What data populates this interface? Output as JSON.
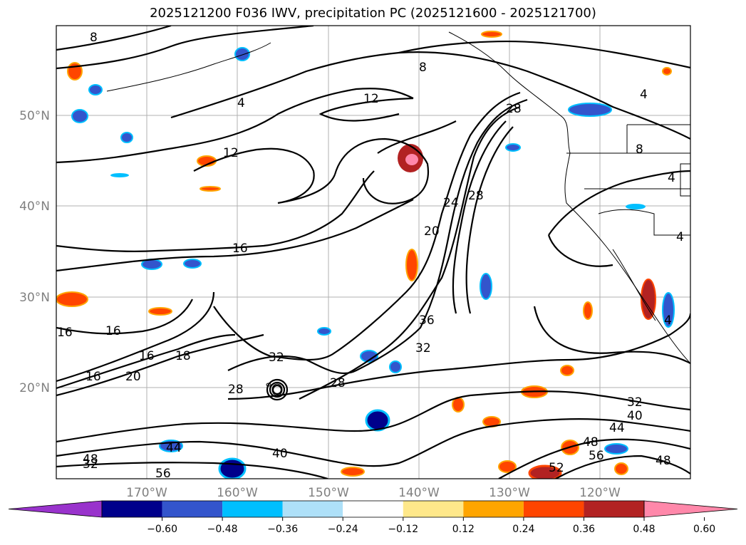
{
  "title": "2025121200 F036 IWV, precipitation PC (2025121600 - 2025121700)",
  "latitudes": [
    {
      "label": "50°N",
      "value": 50
    },
    {
      "label": "40°N",
      "value": 40
    },
    {
      "label": "30°N",
      "value": 30
    },
    {
      "label": "20°N",
      "value": 20
    }
  ],
  "longitudes": [
    {
      "label": "170°W",
      "value": -170
    },
    {
      "label": "160°W",
      "value": -160
    },
    {
      "label": "150°W",
      "value": -150
    },
    {
      "label": "140°W",
      "value": -140
    },
    {
      "label": "130°W",
      "value": -130
    },
    {
      "label": "120°W",
      "value": -120
    }
  ],
  "contour_labels": [
    "8",
    "4",
    "12",
    "8",
    "4",
    "28",
    "12",
    "8",
    "4",
    "4",
    "16",
    "20",
    "24",
    "28",
    "16",
    "16",
    "16",
    "32",
    "36",
    "32",
    "28",
    "28",
    "18",
    "20",
    "32",
    "40",
    "44",
    "48",
    "56",
    "52",
    "48",
    "48",
    "32",
    "44",
    "40",
    "56",
    "4",
    "16"
  ],
  "colorbar": {
    "ticks": [
      "−0.60",
      "−0.48",
      "−0.36",
      "−0.24",
      "−0.12",
      "0.12",
      "0.24",
      "0.36",
      "0.48",
      "0.60"
    ],
    "colors": [
      "#9933cc",
      "#00008b",
      "#3355cc",
      "#00bfff",
      "#aee0f8",
      "#ffffff",
      "#ffe88a",
      "#ffa500",
      "#ff4500",
      "#b22222",
      "#ff88aa"
    ]
  }
}
